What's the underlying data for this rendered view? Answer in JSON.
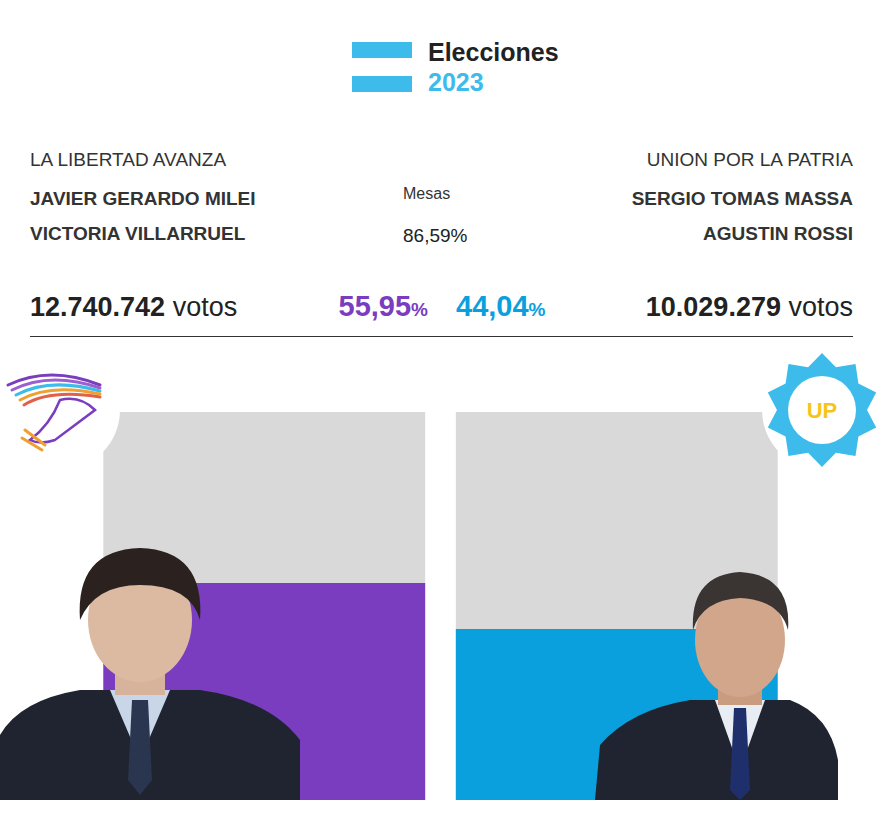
{
  "header": {
    "title": "Elecciones",
    "year": "2023"
  },
  "mesas": {
    "label": "Mesas",
    "value": "86,59%"
  },
  "candidates": [
    {
      "party": "LA LIBERTAD AVANZA",
      "president": "JAVIER GERARDO MILEI",
      "vice": "VICTORIA VILLARRUEL",
      "votes": "12.740.742",
      "votes_unit": "votos"
    },
    {
      "party": "UNION POR LA PATRIA",
      "president": "SERGIO TOMAS MASSA",
      "vice": "AGUSTIN ROSSI",
      "votes": "10.029.279",
      "votes_unit": "votos",
      "logo_text": "UP"
    }
  ],
  "chart_data": {
    "type": "bar",
    "categories": [
      null,
      null
    ],
    "values": [
      55.95,
      44.04
    ],
    "value_labels": [
      "55,95%",
      "44,04%"
    ],
    "colors": [
      "#7a3dbf",
      "#0aa0de"
    ],
    "ylim": [
      0,
      100
    ],
    "tick_labels": false,
    "grid": false
  }
}
